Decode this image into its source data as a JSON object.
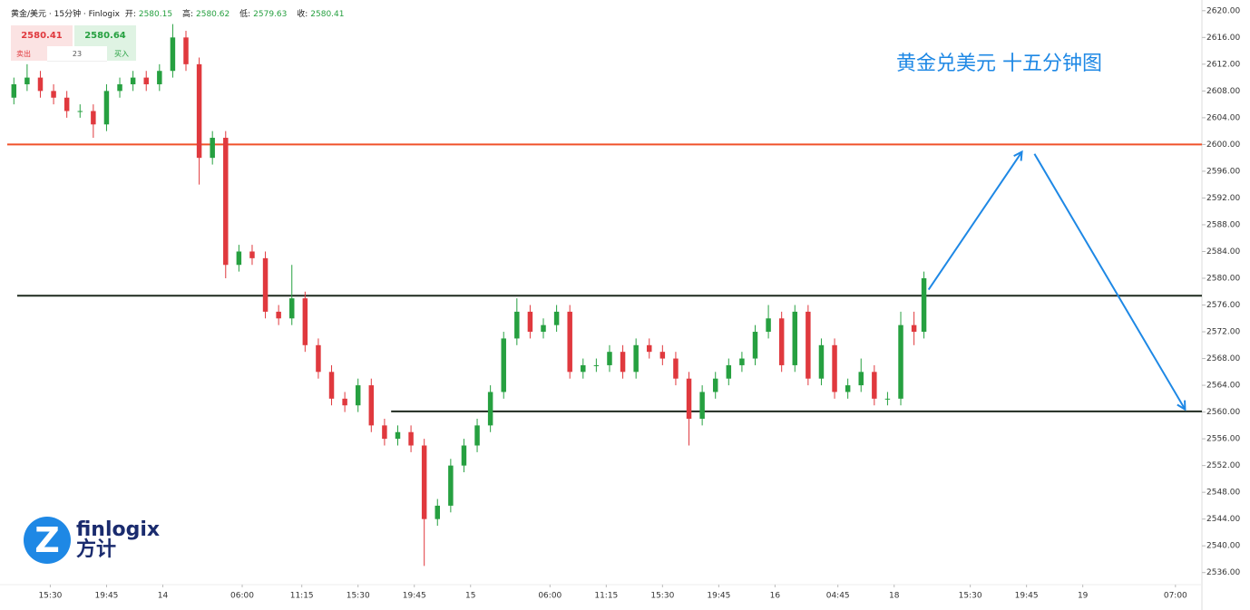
{
  "chart_data": {
    "type": "candlestick",
    "header": {
      "symbol": "黄金/美元 · 15分钟 · Finlogix",
      "open_label": "开:",
      "open": 2580.15,
      "high_label": "高:",
      "high": 2580.62,
      "low_label": "低:",
      "low": 2579.63,
      "close_label": "收:",
      "close": 2580.41
    },
    "quote": {
      "sell": 2580.41,
      "sell_label": "卖出",
      "spread": 23,
      "buy": 2580.64,
      "buy_label": "买入"
    },
    "annotation": "黄金兑美元 十五分钟图",
    "logo": {
      "name": "finlogix",
      "cn": "方计"
    },
    "up_color": "#26a040",
    "down_color": "#e0393e",
    "candles": {
      "x": [
        2,
        6,
        10,
        14,
        18,
        22,
        26,
        30,
        34,
        38,
        42,
        46,
        50,
        54,
        58,
        62,
        66,
        70,
        74,
        78,
        82,
        86,
        90,
        94,
        98,
        102,
        106,
        110,
        114,
        118,
        122,
        126,
        130,
        134,
        138,
        142,
        146,
        150,
        154,
        158,
        162,
        166,
        170,
        174,
        178,
        182,
        186,
        190,
        194,
        198,
        202,
        206,
        210,
        214,
        218,
        222,
        226,
        230,
        234,
        238,
        242,
        246,
        250,
        254,
        258,
        262,
        266,
        270,
        274,
        277
      ],
      "open": [
        2607,
        2609,
        2610,
        2608,
        2607,
        2605,
        2605,
        2603,
        2608,
        2609,
        2610,
        2609,
        2611,
        2616,
        2612,
        2598,
        2601,
        2582,
        2584,
        2583,
        2575,
        2574,
        2577,
        2570,
        2566,
        2562,
        2561,
        2564,
        2558,
        2556,
        2557,
        2555,
        2544,
        2546,
        2552,
        2555,
        2558,
        2563,
        2571,
        2575,
        2572,
        2573,
        2575,
        2566,
        2567,
        2567,
        2569,
        2566,
        2570,
        2569,
        2568,
        2565,
        2559,
        2563,
        2565,
        2567,
        2568,
        2572,
        2574,
        2567,
        2575,
        2565,
        2570,
        2563,
        2564,
        2566,
        2562,
        2562,
        2573,
        2572
      ],
      "high": [
        2610,
        2612,
        2611,
        2609,
        2608,
        2606,
        2606,
        2609,
        2610,
        2611,
        2611,
        2612,
        2618,
        2617,
        2613,
        2602,
        2602,
        2585,
        2585,
        2584,
        2576,
        2582,
        2578,
        2571,
        2567,
        2563,
        2565,
        2565,
        2559,
        2558,
        2558,
        2556,
        2547,
        2553,
        2556,
        2559,
        2564,
        2572,
        2577,
        2576,
        2574,
        2576,
        2576,
        2568,
        2568,
        2570,
        2570,
        2571,
        2571,
        2570,
        2569,
        2566,
        2564,
        2566,
        2568,
        2569,
        2573,
        2576,
        2575,
        2576,
        2576,
        2571,
        2571,
        2565,
        2568,
        2567,
        2563,
        2575,
        2575,
        2581
      ],
      "low": [
        2606,
        2608,
        2607,
        2606,
        2604,
        2604,
        2601,
        2602,
        2607,
        2608,
        2608,
        2608,
        2610,
        2611,
        2594,
        2597,
        2580,
        2581,
        2582,
        2574,
        2573,
        2573,
        2569,
        2565,
        2561,
        2560,
        2560,
        2557,
        2555,
        2555,
        2554,
        2537,
        2543,
        2545,
        2551,
        2554,
        2557,
        2562,
        2570,
        2571,
        2571,
        2572,
        2565,
        2565,
        2566,
        2566,
        2565,
        2565,
        2568,
        2567,
        2564,
        2555,
        2558,
        2562,
        2564,
        2566,
        2567,
        2571,
        2566,
        2566,
        2564,
        2564,
        2562,
        2562,
        2563,
        2561,
        2561,
        2561,
        2570,
        2571
      ],
      "close": [
        2609,
        2610,
        2608,
        2607,
        2605,
        2605,
        2603,
        2608,
        2609,
        2610,
        2609,
        2611,
        2616,
        2612,
        2598,
        2601,
        2582,
        2584,
        2583,
        2575,
        2574,
        2577,
        2570,
        2566,
        2562,
        2561,
        2564,
        2558,
        2556,
        2557,
        2555,
        2544,
        2546,
        2552,
        2555,
        2558,
        2563,
        2571,
        2575,
        2572,
        2573,
        2575,
        2566,
        2567,
        2567,
        2569,
        2566,
        2570,
        2569,
        2568,
        2565,
        2559,
        2563,
        2565,
        2567,
        2568,
        2572,
        2574,
        2567,
        2575,
        2565,
        2570,
        2563,
        2564,
        2566,
        2562,
        2562,
        2573,
        2572,
        2580
      ]
    },
    "hlines": [
      {
        "value": 2600,
        "from": 0,
        "color": "#f0522a"
      },
      {
        "value": 2577.4,
        "from": 3,
        "color": "#1f2a1f"
      },
      {
        "value": 2560.1,
        "from": 116,
        "color": "#1f2a1f"
      }
    ],
    "arrows": [
      {
        "x": [
          278.4,
          306.6
        ],
        "y": [
          2578.3,
          2598.9
        ],
        "color": "#1e88e5"
      },
      {
        "x": [
          310.4,
          355.9
        ],
        "y": [
          2598.6,
          2560.4
        ],
        "color": "#1e88e5"
      }
    ],
    "xlim": [
      0,
      361
    ],
    "ylim": [
      2534.2,
      2621.6
    ],
    "xticks": [
      {
        "value": 13,
        "label": "15:30"
      },
      {
        "value": 30,
        "label": "19:45"
      },
      {
        "value": 47,
        "label": "14"
      },
      {
        "value": 71,
        "label": "06:00"
      },
      {
        "value": 89,
        "label": "11:15"
      },
      {
        "value": 106,
        "label": "15:30"
      },
      {
        "value": 123,
        "label": "19:45"
      },
      {
        "value": 140,
        "label": "15"
      },
      {
        "value": 164,
        "label": "06:00"
      },
      {
        "value": 181,
        "label": "11:15"
      },
      {
        "value": 198,
        "label": "15:30"
      },
      {
        "value": 215,
        "label": "19:45"
      },
      {
        "value": 232,
        "label": "16"
      },
      {
        "value": 251,
        "label": "04:45"
      },
      {
        "value": 268,
        "label": "18"
      },
      {
        "value": 291,
        "label": "15:30"
      },
      {
        "value": 308,
        "label": "19:45"
      },
      {
        "value": 325,
        "label": "19"
      },
      {
        "value": 353,
        "label": "07:00"
      }
    ],
    "yticks": [
      {
        "value": 2536,
        "label": "2536.00"
      },
      {
        "value": 2540,
        "label": "2540.00"
      },
      {
        "value": 2544,
        "label": "2544.00"
      },
      {
        "value": 2548,
        "label": "2548.00"
      },
      {
        "value": 2552,
        "label": "2552.00"
      },
      {
        "value": 2556,
        "label": "2556.00"
      },
      {
        "value": 2560,
        "label": "2560.00"
      },
      {
        "value": 2564,
        "label": "2564.00"
      },
      {
        "value": 2568,
        "label": "2568.00"
      },
      {
        "value": 2572,
        "label": "2572.00"
      },
      {
        "value": 2576,
        "label": "2576.00"
      },
      {
        "value": 2580,
        "label": "2580.00"
      },
      {
        "value": 2584,
        "label": "2584.00"
      },
      {
        "value": 2588,
        "label": "2588.00"
      },
      {
        "value": 2592,
        "label": "2592.00"
      },
      {
        "value": 2596,
        "label": "2596.00"
      },
      {
        "value": 2600,
        "label": "2600.00"
      },
      {
        "value": 2604,
        "label": "2604.00"
      },
      {
        "value": 2608,
        "label": "2608.00"
      },
      {
        "value": 2612,
        "label": "2612.00"
      },
      {
        "value": 2616,
        "label": "2616.00"
      },
      {
        "value": 2620,
        "label": "2620.00"
      }
    ]
  }
}
